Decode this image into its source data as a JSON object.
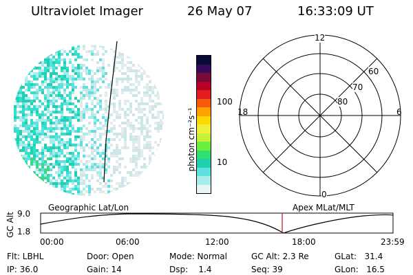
{
  "header": {
    "instrument": "Ultraviolet Imager",
    "date": "26 May 07",
    "time": "16:33:09 UT"
  },
  "colorbar": {
    "unit_label": "photon cm⁻²s⁻¹",
    "ticks": [
      "100",
      "10"
    ],
    "colors": [
      "#0b0b3a",
      "#3a0a5a",
      "#7a0a3a",
      "#b8002a",
      "#e01e1e",
      "#f55a10",
      "#ffa000",
      "#ffd800",
      "#eef03a",
      "#c8f03a",
      "#6cf040",
      "#30e070",
      "#20d0b0",
      "#60e0e0",
      "#a8ecec",
      "#e8f4f4"
    ]
  },
  "polar_plot": {
    "mlt_labels": {
      "top": "12",
      "left": "18",
      "right": "6",
      "bottom": "0"
    },
    "lat_labels": [
      "60",
      "70",
      "80"
    ]
  },
  "timeline": {
    "label_left": "Geographic Lat/Lon",
    "label_right": "Apex MLat/MLT",
    "yaxis_title": "GC Alt",
    "ytick_top": "9.0",
    "ytick_bottom": "1.8",
    "xticks": [
      "00:00",
      "06:00",
      "12:00",
      "18:00",
      "23:59"
    ],
    "cursor_color": "#c01020"
  },
  "stats": {
    "flt": "Flt: LBHL",
    "ip": "IP: 36.0",
    "door": "Door: Open",
    "gain": "Gain: 14",
    "mode": "Mode: Normal",
    "dsp": "Dsp:    1.4",
    "gcalt": "GC Alt: 2.3 Re",
    "seq": "Seq: 39",
    "glat": "GLat:   31.4",
    "glon": "GLon:   16.5"
  }
}
